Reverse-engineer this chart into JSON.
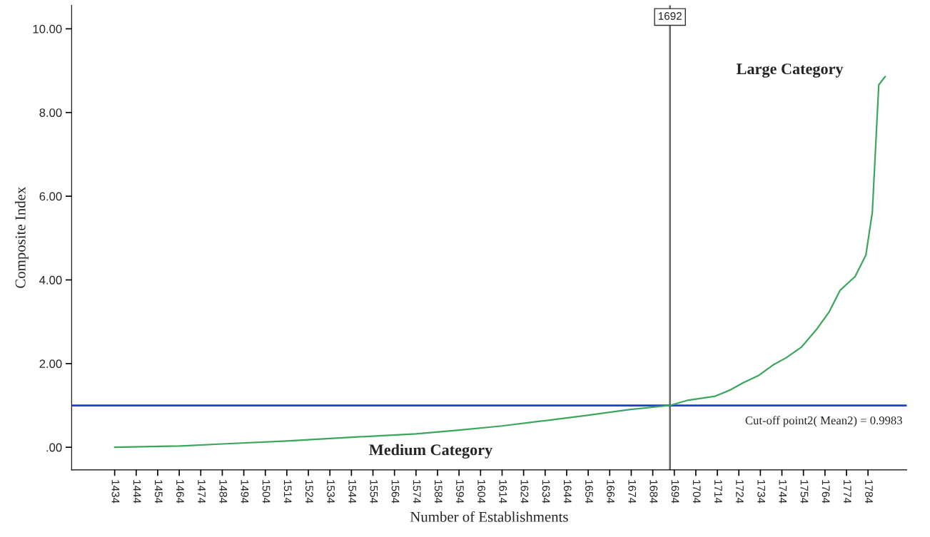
{
  "chart_data": {
    "type": "line",
    "xlabel": "Number of Establishments",
    "ylabel": "Composite Index",
    "x": [
      1434,
      1464,
      1484,
      1514,
      1544,
      1574,
      1594,
      1614,
      1633,
      1653,
      1673,
      1692,
      1700,
      1713,
      1720,
      1726,
      1733,
      1740,
      1746,
      1753,
      1760,
      1766,
      1771,
      1778,
      1783,
      1786,
      1789,
      1792
    ],
    "series": [
      {
        "color": "#3ca65c",
        "values": [
          0.0,
          0.03,
          0.08,
          0.15,
          0.24,
          0.32,
          0.41,
          0.51,
          0.63,
          0.76,
          0.9,
          1.0,
          1.12,
          1.22,
          1.37,
          1.54,
          1.71,
          1.97,
          2.14,
          2.39,
          2.81,
          3.24,
          3.75,
          4.08,
          4.59,
          5.61,
          8.66,
          8.86
        ]
      }
    ],
    "xlim": [
      1414,
      1802
    ],
    "xticks": [
      1434,
      1444,
      1454,
      1464,
      1474,
      1484,
      1494,
      1504,
      1514,
      1524,
      1534,
      1544,
      1554,
      1564,
      1574,
      1584,
      1594,
      1604,
      1614,
      1624,
      1634,
      1644,
      1654,
      1664,
      1674,
      1684,
      1694,
      1704,
      1714,
      1724,
      1734,
      1744,
      1754,
      1764,
      1774,
      1784
    ],
    "ylim": [
      -0.54,
      10.56
    ],
    "yticks": [
      {
        "value": 0,
        "label": ".00"
      },
      {
        "value": 2,
        "label": "2.00"
      },
      {
        "value": 4,
        "label": "4.00"
      },
      {
        "value": 6,
        "label": "6.00"
      },
      {
        "value": 8,
        "label": "8.00"
      },
      {
        "value": 10,
        "label": "10.00"
      }
    ],
    "ref_lines": [
      {
        "axis": "x",
        "value": 1692,
        "label": "1692",
        "color": "#666666"
      },
      {
        "axis": "y",
        "value": 0.9983,
        "label": "Cut-off point2( Mean2) = 0.9983",
        "color": "#1f3fc4"
      }
    ],
    "annotations": [
      "Large Category",
      "Medium Category"
    ],
    "grid": false
  }
}
